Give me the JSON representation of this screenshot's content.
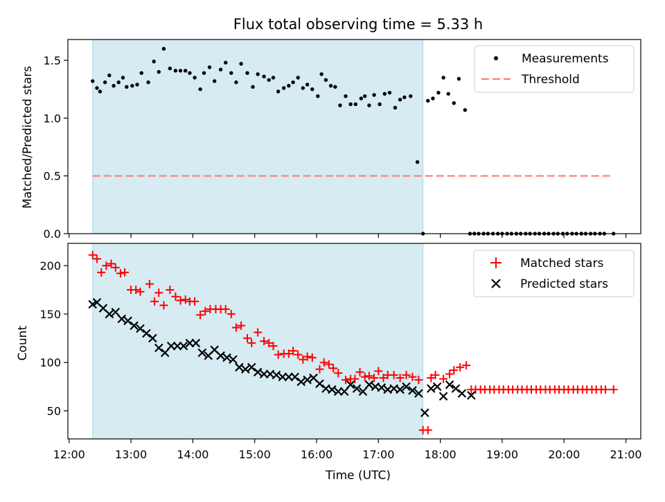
{
  "chart_data": {
    "title": "Flux total observing time = 5.33 h",
    "shaded_span": {
      "x_start": 12.38,
      "x_end": 17.72,
      "color": "#add8e6"
    },
    "xlabel": "Time (UTC)",
    "x_ticks": [
      {
        "value": 12,
        "label": "12:00"
      },
      {
        "value": 13,
        "label": "13:00"
      },
      {
        "value": 14,
        "label": "14:00"
      },
      {
        "value": 15,
        "label": "15:00"
      },
      {
        "value": 16,
        "label": "16:00"
      },
      {
        "value": 17,
        "label": "17:00"
      },
      {
        "value": 18,
        "label": "18:00"
      },
      {
        "value": 19,
        "label": "19:00"
      },
      {
        "value": 20,
        "label": "20:00"
      },
      {
        "value": 21,
        "label": "21:00"
      }
    ],
    "xlim": [
      11.98,
      21.24
    ],
    "top": {
      "type": "scatter",
      "ylabel": "Matched/Predicted stars",
      "ylim": [
        0,
        1.68
      ],
      "y_ticks": [
        {
          "value": 0,
          "label": "0.0"
        },
        {
          "value": 0.5,
          "label": "0.5"
        },
        {
          "value": 1.0,
          "label": "1.0"
        },
        {
          "value": 1.5,
          "label": "1.5"
        }
      ],
      "legend": [
        {
          "label": "Measurements",
          "marker": "dot",
          "color": "#000000"
        },
        {
          "label": "Threshold",
          "marker": "dash",
          "color": "#ff7b7b"
        }
      ],
      "threshold": {
        "value": 0.5,
        "x_start": 12.38,
        "x_end": 20.75,
        "color": "#ff7b7b"
      },
      "measurements": {
        "x": [
          12.38,
          12.45,
          12.5,
          12.58,
          12.65,
          12.72,
          12.8,
          12.87,
          12.93,
          13.02,
          13.1,
          13.17,
          13.28,
          13.37,
          13.45,
          13.53,
          13.63,
          13.72,
          13.8,
          13.88,
          13.95,
          14.03,
          14.12,
          14.18,
          14.27,
          14.35,
          14.45,
          14.53,
          14.62,
          14.7,
          14.78,
          14.88,
          14.97,
          15.05,
          15.15,
          15.23,
          15.3,
          15.38,
          15.47,
          15.55,
          15.62,
          15.7,
          15.78,
          15.85,
          15.93,
          16.02,
          16.08,
          16.15,
          16.23,
          16.3,
          16.38,
          16.47,
          16.55,
          16.63,
          16.72,
          16.78,
          16.85,
          16.93,
          17.02,
          17.1,
          17.18,
          17.27,
          17.35,
          17.42,
          17.52,
          17.63,
          17.72,
          17.8,
          17.88,
          17.97,
          18.05,
          18.13,
          18.22,
          18.3,
          18.4,
          18.48,
          18.55,
          18.62,
          18.7,
          18.77,
          18.85,
          18.93,
          19.0,
          19.08,
          19.15,
          19.23,
          19.3,
          19.38,
          19.45,
          19.53,
          19.6,
          19.68,
          19.75,
          19.83,
          19.9,
          19.98,
          20.05,
          20.13,
          20.2,
          20.28,
          20.35,
          20.43,
          20.5,
          20.58,
          20.65,
          20.8
        ],
        "y": [
          1.32,
          1.26,
          1.23,
          1.31,
          1.37,
          1.28,
          1.31,
          1.35,
          1.27,
          1.28,
          1.29,
          1.39,
          1.31,
          1.49,
          1.4,
          1.6,
          1.43,
          1.41,
          1.41,
          1.41,
          1.39,
          1.35,
          1.25,
          1.39,
          1.44,
          1.32,
          1.42,
          1.48,
          1.39,
          1.31,
          1.47,
          1.39,
          1.27,
          1.38,
          1.36,
          1.33,
          1.35,
          1.23,
          1.26,
          1.28,
          1.31,
          1.35,
          1.26,
          1.29,
          1.25,
          1.19,
          1.38,
          1.33,
          1.28,
          1.27,
          1.11,
          1.19,
          1.12,
          1.12,
          1.17,
          1.19,
          1.11,
          1.2,
          1.12,
          1.21,
          1.22,
          1.09,
          1.16,
          1.18,
          1.19,
          0.62,
          0.0,
          1.15,
          1.17,
          1.22,
          1.35,
          1.21,
          1.13,
          1.34,
          1.07,
          0.0,
          0.0,
          0.0,
          0.0,
          0.0,
          0.0,
          0.0,
          0.0,
          0.0,
          0.0,
          0.0,
          0.0,
          0.0,
          0.0,
          0.0,
          0.0,
          0.0,
          0.0,
          0.0,
          0.0,
          0.0,
          0.0,
          0.0,
          0.0,
          0.0,
          0.0,
          0.0,
          0.0,
          0.0,
          0.0,
          0.0
        ]
      }
    },
    "bottom": {
      "type": "scatter",
      "ylabel": "Count",
      "ylim": [
        21,
        223
      ],
      "y_ticks": [
        {
          "value": 50,
          "label": "50"
        },
        {
          "value": 100,
          "label": "100"
        },
        {
          "value": 150,
          "label": "150"
        },
        {
          "value": 200,
          "label": "200"
        }
      ],
      "legend": [
        {
          "label": "Matched stars",
          "marker": "plus",
          "color": "#ff0000"
        },
        {
          "label": "Predicted stars",
          "marker": "x",
          "color": "#000000"
        }
      ],
      "matched": {
        "x": [
          12.38,
          12.45,
          12.52,
          12.6,
          12.68,
          12.75,
          12.83,
          12.9,
          13.0,
          13.08,
          13.15,
          13.3,
          13.38,
          13.45,
          13.53,
          13.63,
          13.72,
          13.8,
          13.88,
          13.95,
          14.03,
          14.12,
          14.2,
          14.28,
          14.37,
          14.45,
          14.53,
          14.62,
          14.7,
          14.78,
          14.88,
          14.95,
          15.05,
          15.15,
          15.23,
          15.3,
          15.38,
          15.47,
          15.55,
          15.62,
          15.7,
          15.78,
          15.85,
          15.93,
          16.05,
          16.12,
          16.2,
          16.27,
          16.35,
          16.47,
          16.55,
          16.62,
          16.7,
          16.78,
          16.85,
          16.93,
          17.0,
          17.08,
          17.15,
          17.25,
          17.35,
          17.45,
          17.55,
          17.65,
          17.72,
          17.8,
          17.85,
          17.92,
          18.05,
          18.15,
          18.22,
          18.32,
          18.42,
          18.5,
          18.57,
          18.65,
          18.72,
          18.8,
          18.87,
          18.95,
          19.02,
          19.1,
          19.17,
          19.25,
          19.32,
          19.4,
          19.47,
          19.55,
          19.62,
          19.7,
          19.77,
          19.85,
          19.92,
          20.0,
          20.07,
          20.15,
          20.22,
          20.3,
          20.37,
          20.45,
          20.52,
          20.6,
          20.67,
          20.8
        ],
        "y": [
          211,
          207,
          193,
          200,
          202,
          198,
          192,
          193,
          175,
          175,
          173,
          181,
          163,
          172,
          159,
          175,
          168,
          164,
          165,
          163,
          163,
          149,
          153,
          155,
          155,
          155,
          155,
          150,
          136,
          138,
          125,
          120,
          131,
          122,
          120,
          117,
          108,
          109,
          109,
          112,
          108,
          103,
          106,
          105,
          93,
          100,
          98,
          94,
          89,
          82,
          83,
          83,
          90,
          85,
          86,
          84,
          91,
          84,
          87,
          87,
          84,
          87,
          85,
          82,
          30,
          30,
          84,
          87,
          83,
          88,
          92,
          95,
          97,
          72,
          72,
          72,
          72,
          72,
          72,
          72,
          72,
          72,
          72,
          72,
          72,
          72,
          72,
          72,
          72,
          72,
          72,
          72,
          72,
          72,
          72,
          72,
          72,
          72,
          72,
          72,
          72,
          72,
          72,
          72
        ]
      },
      "predicted": {
        "x": [
          12.38,
          12.45,
          12.55,
          12.65,
          12.75,
          12.85,
          12.95,
          13.05,
          13.15,
          13.25,
          13.35,
          13.45,
          13.55,
          13.65,
          13.75,
          13.85,
          13.95,
          14.05,
          14.15,
          14.25,
          14.35,
          14.45,
          14.55,
          14.65,
          14.75,
          14.85,
          14.95,
          15.05,
          15.15,
          15.25,
          15.35,
          15.45,
          15.55,
          15.65,
          15.75,
          15.85,
          15.95,
          16.05,
          16.15,
          16.25,
          16.35,
          16.45,
          16.55,
          16.65,
          16.75,
          16.85,
          16.95,
          17.05,
          17.15,
          17.25,
          17.35,
          17.45,
          17.55,
          17.65,
          17.75,
          17.85,
          17.95,
          18.05,
          18.15,
          18.25,
          18.35,
          18.5
        ],
        "y": [
          160,
          162,
          156,
          150,
          152,
          145,
          143,
          138,
          135,
          130,
          125,
          115,
          110,
          117,
          117,
          117,
          120,
          120,
          110,
          107,
          113,
          107,
          105,
          103,
          95,
          93,
          95,
          90,
          88,
          88,
          87,
          85,
          85,
          85,
          80,
          82,
          84,
          78,
          73,
          72,
          70,
          70,
          77,
          73,
          70,
          77,
          75,
          74,
          72,
          73,
          72,
          75,
          71,
          68,
          48,
          73,
          75,
          65,
          77,
          73,
          68,
          66
        ]
      }
    }
  }
}
